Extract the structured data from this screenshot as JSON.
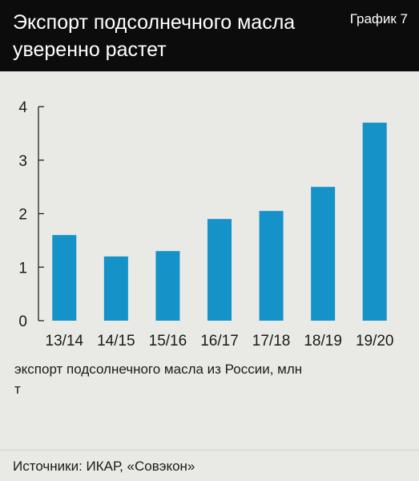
{
  "header": {
    "title": "Экспорт подсолнечного масла уверенно растет",
    "label": "График 7"
  },
  "footer": {
    "source": "Источники: ИКАР, «Совэкон»"
  },
  "colors": {
    "bar": "#1592c7",
    "header_bg": "#0c0c0c",
    "background": "#e9e9e6"
  },
  "chart_data": {
    "type": "bar",
    "title": "Экспорт подсолнечного масла уверенно растет",
    "legend_text": "экспорт подсолнечного масла из России, млн т",
    "categories": [
      "13/14",
      "14/15",
      "15/16",
      "16/17",
      "17/18",
      "18/19",
      "19/20"
    ],
    "values": [
      1.6,
      1.2,
      1.3,
      1.9,
      2.05,
      2.5,
      3.7
    ],
    "yticks": [
      "0",
      "1",
      "2",
      "3",
      "4"
    ],
    "ylim": [
      0,
      4
    ],
    "grid": false
  }
}
